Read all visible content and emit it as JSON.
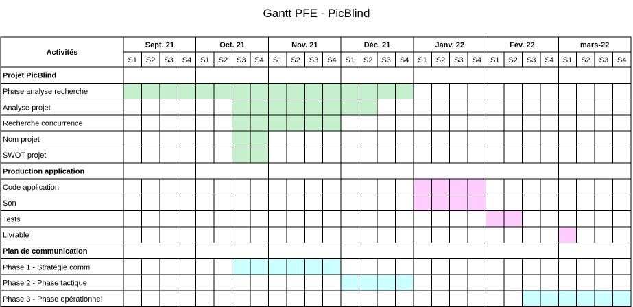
{
  "chart_data": {
    "type": "table",
    "title": "Gantt PFE - PicBlind",
    "activities_header": "Activités",
    "months": [
      "Sept. 21",
      "Oct. 21",
      "Nov. 21",
      "Déc. 21",
      "Janv. 22",
      "Fév. 22",
      "mars-22"
    ],
    "weeks": [
      "S1",
      "S2",
      "S3",
      "S4"
    ],
    "colors": {
      "green": "#c6efce",
      "pink": "#ffccff",
      "cyan": "#ccffff",
      "grid": "#000000"
    },
    "rows": [
      {
        "label": "Projet PicBlind",
        "section": true
      },
      {
        "label": "Phase analyse recherche",
        "color": "green",
        "start_week": 1,
        "end_week": 16
      },
      {
        "label": "Analyse projet",
        "color": "green",
        "start_week": 7,
        "end_week": 14
      },
      {
        "label": "Recherche concurrence",
        "color": "green",
        "start_week": 7,
        "end_week": 12
      },
      {
        "label": "Nom projet",
        "color": "green",
        "start_week": 7,
        "end_week": 8
      },
      {
        "label": "SWOT projet",
        "color": "green",
        "start_week": 7,
        "end_week": 8
      },
      {
        "label": "Production application",
        "section": true
      },
      {
        "label": "Code application",
        "color": "pink",
        "start_week": 17,
        "end_week": 20
      },
      {
        "label": "Son",
        "color": "pink",
        "start_week": 17,
        "end_week": 20
      },
      {
        "label": "Tests",
        "color": "pink",
        "start_week": 21,
        "end_week": 22
      },
      {
        "label": "Livrable",
        "color": "pink",
        "start_week": 25,
        "end_week": 25
      },
      {
        "label": "Plan de communication",
        "section": true
      },
      {
        "label": "Phase 1 - Stratégie comm",
        "color": "cyan",
        "start_week": 7,
        "end_week": 12
      },
      {
        "label": "Phase 2 - Phase tactique",
        "color": "cyan",
        "start_week": 13,
        "end_week": 16
      },
      {
        "label": "Phase 3 - Phase opérationnel",
        "color": "cyan",
        "start_week": 23,
        "end_week": 28
      }
    ]
  }
}
